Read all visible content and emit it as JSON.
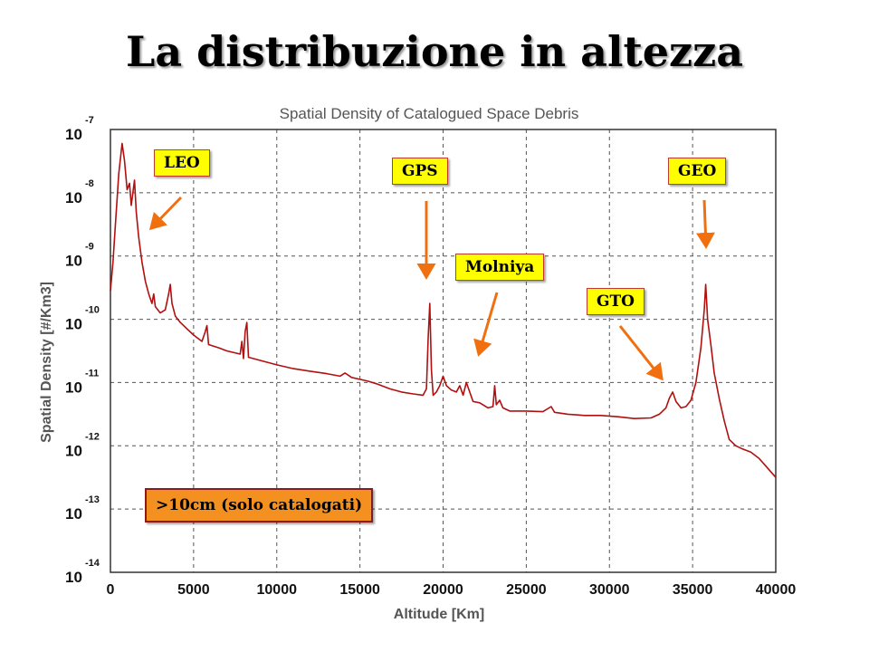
{
  "slide": {
    "title": "La distribuzione in altezza"
  },
  "colors": {
    "curve": "#b01010",
    "callout_fill": "#ffff00",
    "callout_border": "#c0392b",
    "arrow": "#f07010",
    "note_fill": "#f39020",
    "note_border": "#8b1a1a",
    "grid": "#555555"
  },
  "callouts": {
    "leo": "LEO",
    "gps": "GPS",
    "molniya": "Molniya",
    "gto": "GTO",
    "geo": "GEO"
  },
  "note": {
    "label": ">10cm (solo catalogati)"
  },
  "chart_data": {
    "type": "line",
    "title": "Spatial Density of Catalogued Space Debris",
    "xlabel": "Altitude [Km]",
    "ylabel": "Spatial Density [#/Km3]",
    "xlim": [
      0,
      40000
    ],
    "ylim_log10": [
      -14,
      -7
    ],
    "y_scale": "log",
    "grid": true,
    "x_ticks": [
      {
        "value": 0,
        "label": "0"
      },
      {
        "value": 5000,
        "label": "5000"
      },
      {
        "value": 10000,
        "label": "10000"
      },
      {
        "value": 15000,
        "label": "15000"
      },
      {
        "value": 20000,
        "label": "20000"
      },
      {
        "value": 25000,
        "label": "25000"
      },
      {
        "value": 30000,
        "label": "30000"
      },
      {
        "value": 35000,
        "label": "35000"
      },
      {
        "value": 40000,
        "label": "40000"
      }
    ],
    "y_ticks": [
      {
        "exp": -7,
        "base": "10",
        "exponent": "-7"
      },
      {
        "exp": -8,
        "base": "10",
        "exponent": "-8"
      },
      {
        "exp": -9,
        "base": "10",
        "exponent": "-9"
      },
      {
        "exp": -10,
        "base": "10",
        "exponent": "-10"
      },
      {
        "exp": -11,
        "base": "10",
        "exponent": "-11"
      },
      {
        "exp": -12,
        "base": "10",
        "exponent": "-12"
      },
      {
        "exp": -13,
        "base": "10",
        "exponent": "-13"
      },
      {
        "exp": -14,
        "base": "10",
        "exponent": "-14"
      }
    ],
    "series": [
      {
        "values_log10": [
          [
            0,
            -9.55
          ],
          [
            150,
            -9.1
          ],
          [
            300,
            -8.5
          ],
          [
            500,
            -7.7
          ],
          [
            700,
            -7.22
          ],
          [
            850,
            -7.5
          ],
          [
            1000,
            -7.95
          ],
          [
            1150,
            -7.85
          ],
          [
            1250,
            -8.2
          ],
          [
            1350,
            -8.0
          ],
          [
            1450,
            -7.8
          ],
          [
            1550,
            -8.3
          ],
          [
            1700,
            -8.7
          ],
          [
            1900,
            -9.1
          ],
          [
            2100,
            -9.4
          ],
          [
            2300,
            -9.6
          ],
          [
            2500,
            -9.75
          ],
          [
            2600,
            -9.6
          ],
          [
            2700,
            -9.8
          ],
          [
            3000,
            -9.9
          ],
          [
            3300,
            -9.85
          ],
          [
            3500,
            -9.6
          ],
          [
            3600,
            -9.45
          ],
          [
            3700,
            -9.75
          ],
          [
            3900,
            -9.95
          ],
          [
            4200,
            -10.05
          ],
          [
            4600,
            -10.15
          ],
          [
            5000,
            -10.25
          ],
          [
            5500,
            -10.35
          ],
          [
            5700,
            -10.2
          ],
          [
            5800,
            -10.1
          ],
          [
            5900,
            -10.4
          ],
          [
            6500,
            -10.45
          ],
          [
            7000,
            -10.5
          ],
          [
            7800,
            -10.55
          ],
          [
            7900,
            -10.35
          ],
          [
            8000,
            -10.62
          ],
          [
            8100,
            -10.2
          ],
          [
            8200,
            -10.05
          ],
          [
            8300,
            -10.6
          ],
          [
            9000,
            -10.65
          ],
          [
            10000,
            -10.72
          ],
          [
            11000,
            -10.78
          ],
          [
            12000,
            -10.82
          ],
          [
            13000,
            -10.86
          ],
          [
            13800,
            -10.9
          ],
          [
            14100,
            -10.85
          ],
          [
            14500,
            -10.92
          ],
          [
            15000,
            -10.95
          ],
          [
            15500,
            -10.98
          ],
          [
            16000,
            -11.02
          ],
          [
            16800,
            -11.1
          ],
          [
            17500,
            -11.15
          ],
          [
            18200,
            -11.18
          ],
          [
            18800,
            -11.2
          ],
          [
            19000,
            -11.1
          ],
          [
            19100,
            -10.3
          ],
          [
            19200,
            -9.75
          ],
          [
            19300,
            -10.8
          ],
          [
            19400,
            -11.2
          ],
          [
            19600,
            -11.15
          ],
          [
            19800,
            -11.05
          ],
          [
            20000,
            -10.9
          ],
          [
            20200,
            -11.05
          ],
          [
            20500,
            -11.12
          ],
          [
            20800,
            -11.15
          ],
          [
            21000,
            -11.05
          ],
          [
            21200,
            -11.2
          ],
          [
            21400,
            -11.0
          ],
          [
            21600,
            -11.15
          ],
          [
            21800,
            -11.3
          ],
          [
            22200,
            -11.32
          ],
          [
            22700,
            -11.4
          ],
          [
            23000,
            -11.38
          ],
          [
            23100,
            -11.05
          ],
          [
            23200,
            -11.35
          ],
          [
            23400,
            -11.28
          ],
          [
            23600,
            -11.4
          ],
          [
            24000,
            -11.45
          ],
          [
            25000,
            -11.45
          ],
          [
            26000,
            -11.46
          ],
          [
            26500,
            -11.38
          ],
          [
            26700,
            -11.47
          ],
          [
            27500,
            -11.5
          ],
          [
            28500,
            -11.52
          ],
          [
            29500,
            -11.52
          ],
          [
            30500,
            -11.54
          ],
          [
            31500,
            -11.57
          ],
          [
            32500,
            -11.56
          ],
          [
            33000,
            -11.5
          ],
          [
            33400,
            -11.4
          ],
          [
            33600,
            -11.25
          ],
          [
            33800,
            -11.15
          ],
          [
            34000,
            -11.3
          ],
          [
            34300,
            -11.4
          ],
          [
            34600,
            -11.38
          ],
          [
            34900,
            -11.28
          ],
          [
            35200,
            -11.0
          ],
          [
            35500,
            -10.45
          ],
          [
            35700,
            -9.85
          ],
          [
            35786,
            -9.45
          ],
          [
            35900,
            -10.0
          ],
          [
            36100,
            -10.4
          ],
          [
            36300,
            -10.85
          ],
          [
            36600,
            -11.25
          ],
          [
            36900,
            -11.6
          ],
          [
            37200,
            -11.9
          ],
          [
            37600,
            -12.0
          ],
          [
            38000,
            -12.05
          ],
          [
            38500,
            -12.1
          ],
          [
            39000,
            -12.2
          ],
          [
            39500,
            -12.35
          ],
          [
            40000,
            -12.5
          ]
        ]
      }
    ]
  }
}
